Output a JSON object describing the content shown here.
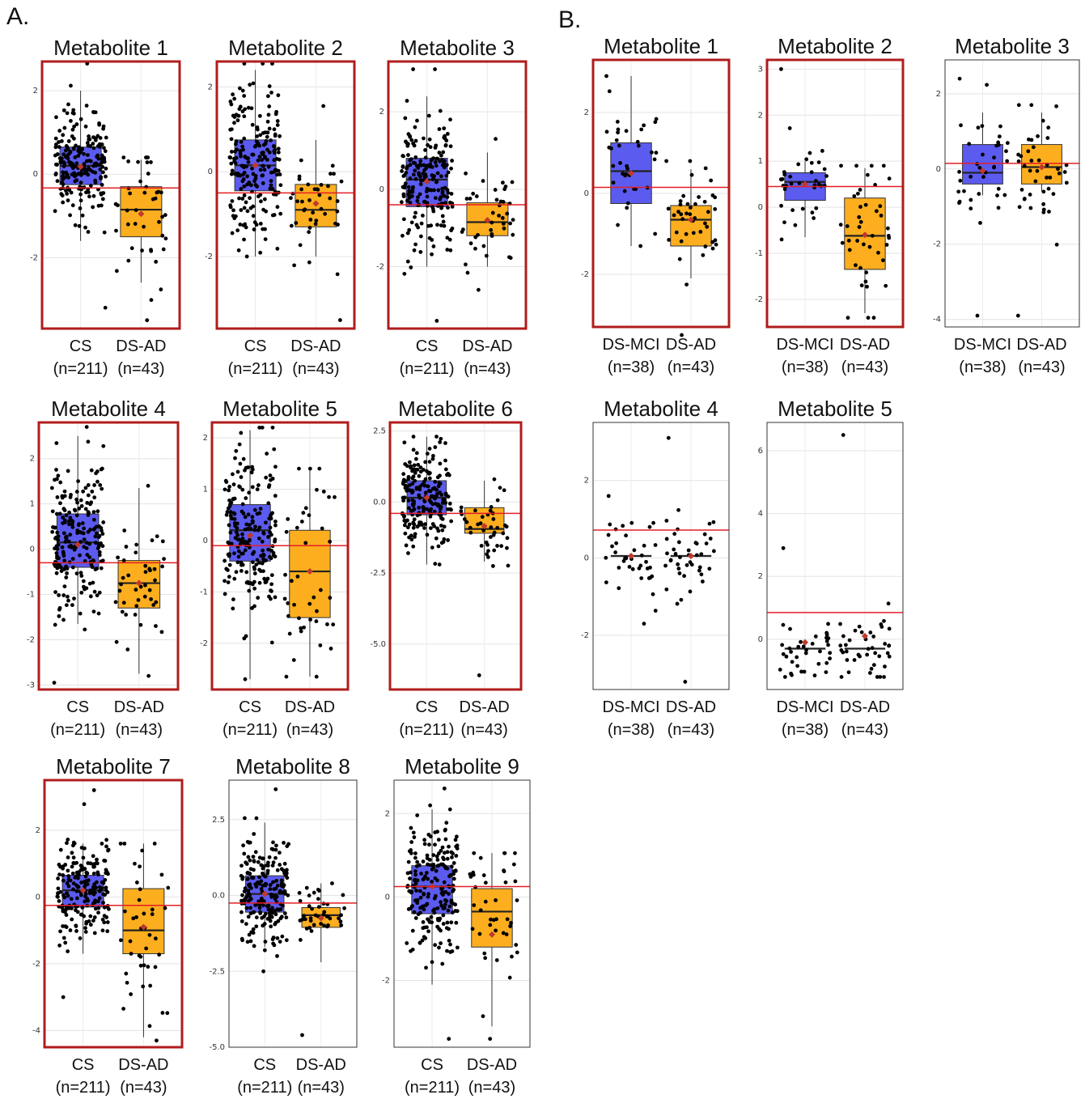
{
  "panels": [
    {
      "letter": "A.",
      "charts": [
        {
          "title": "Metabolite 1",
          "highlighted": true,
          "groups": [
            "CS",
            "DS-AD"
          ],
          "ns": [
            "(n=211)",
            "(n=43)"
          ],
          "ylim": [
            -3.7,
            2.7
          ],
          "yticks": [
            2,
            0,
            -2
          ],
          "tick_labels": [
            "2",
            "0",
            "-2"
          ],
          "threshold": -0.33,
          "boxes": [
            {
              "q1": -0.25,
              "median": 0.2,
              "q3": 0.65,
              "wlo": -1.6,
              "whi": 2.0,
              "mean": 0.18,
              "n": 211,
              "ymin": -3.2,
              "ymax": 2.65
            },
            {
              "q1": -1.5,
              "median": -0.85,
              "q3": -0.3,
              "wlo": -2.6,
              "whi": 0.35,
              "mean": -0.95,
              "n": 43,
              "ymin": -3.5,
              "ymax": 0.4
            }
          ]
        },
        {
          "title": "Metabolite 2",
          "highlighted": true,
          "groups": [
            "CS",
            "DS-AD"
          ],
          "ns": [
            "(n=211)",
            "(n=43)"
          ],
          "ylim": [
            -3.7,
            2.6
          ],
          "yticks": [
            2,
            0,
            -2
          ],
          "tick_labels": [
            "2",
            "0",
            "-2"
          ],
          "threshold": -0.5,
          "boxes": [
            {
              "q1": -0.45,
              "median": 0.15,
              "q3": 0.75,
              "wlo": -2.0,
              "whi": 2.4,
              "mean": 0.15,
              "n": 211,
              "ymin": -2.0,
              "ymax": 2.55
            },
            {
              "q1": -1.3,
              "median": -0.9,
              "q3": -0.3,
              "wlo": -2.0,
              "whi": 0.75,
              "mean": -0.75,
              "n": 43,
              "ymin": -3.5,
              "ymax": 1.55
            }
          ]
        },
        {
          "title": "Metabolite 3",
          "highlighted": true,
          "groups": [
            "CS",
            "DS-AD"
          ],
          "ns": [
            "(n=211)",
            "(n=43)"
          ],
          "ylim": [
            -3.6,
            3.3
          ],
          "yticks": [
            2,
            0,
            -2
          ],
          "tick_labels": [
            "2",
            "0",
            "-2"
          ],
          "threshold": -0.4,
          "boxes": [
            {
              "q1": -0.45,
              "median": 0.25,
              "q3": 0.8,
              "wlo": -2.0,
              "whi": 2.4,
              "mean": 0.2,
              "n": 211,
              "ymin": -3.4,
              "ymax": 3.1
            },
            {
              "q1": -1.2,
              "median": -0.85,
              "q3": -0.35,
              "wlo": -2.0,
              "whi": 0.95,
              "mean": -0.8,
              "n": 43,
              "ymin": -2.6,
              "ymax": 1.3
            }
          ]
        },
        {
          "title": "Metabolite 4",
          "highlighted": true,
          "groups": [
            "CS",
            "DS-AD"
          ],
          "ns": [
            "(n=211)",
            "(n=43)"
          ],
          "ylim": [
            -3.1,
            2.8
          ],
          "yticks": [
            2,
            1,
            0,
            -1,
            -2,
            -3
          ],
          "tick_labels": [
            "2",
            "1",
            "0",
            "-1",
            "-2",
            "-3"
          ],
          "threshold": -0.3,
          "boxes": [
            {
              "q1": -0.4,
              "median": 0.15,
              "q3": 0.78,
              "wlo": -1.65,
              "whi": 2.5,
              "mean": 0.1,
              "n": 211,
              "ymin": -2.95,
              "ymax": 2.7
            },
            {
              "q1": -1.3,
              "median": -0.75,
              "q3": -0.25,
              "wlo": -2.75,
              "whi": 1.35,
              "mean": -0.75,
              "n": 43,
              "ymin": -2.8,
              "ymax": 1.4
            }
          ]
        },
        {
          "title": "Metabolite 5",
          "highlighted": true,
          "groups": [
            "CS",
            "DS-AD"
          ],
          "ns": [
            "(n=211)",
            "(n=43)"
          ],
          "ylim": [
            -2.9,
            2.3
          ],
          "yticks": [
            2,
            1,
            0,
            -1,
            -2
          ],
          "tick_labels": [
            "2",
            "1",
            "0",
            "-1",
            "-2"
          ],
          "threshold": -0.1,
          "boxes": [
            {
              "q1": -0.4,
              "median": 0.2,
              "q3": 0.7,
              "wlo": -2.7,
              "whi": 2.15,
              "mean": 0.1,
              "n": 211,
              "ymin": -2.7,
              "ymax": 2.2
            },
            {
              "q1": -1.5,
              "median": -0.6,
              "q3": 0.2,
              "wlo": -2.65,
              "whi": 1.4,
              "mean": -0.6,
              "n": 43,
              "ymin": -2.65,
              "ymax": 1.4
            }
          ]
        },
        {
          "title": "Metabolite 6",
          "highlighted": true,
          "groups": [
            "CS",
            "DS-AD"
          ],
          "ns": [
            "(n=211)",
            "(n=43)"
          ],
          "ylim": [
            -6.6,
            2.8
          ],
          "yticks": [
            2.5,
            0,
            -2.5,
            -5
          ],
          "tick_labels": [
            "2.5",
            "0.0",
            "-2.5",
            "-5.0"
          ],
          "threshold": -0.4,
          "boxes": [
            {
              "q1": -0.45,
              "median": 0.15,
              "q3": 0.75,
              "wlo": -2.2,
              "whi": 2.3,
              "mean": 0.15,
              "n": 211,
              "ymin": -2.2,
              "ymax": 2.3
            },
            {
              "q1": -1.1,
              "median": -0.95,
              "q3": -0.2,
              "wlo": -2.1,
              "whi": 0.75,
              "mean": -0.85,
              "n": 43,
              "ymin": -6.1,
              "ymax": 0.8
            }
          ]
        },
        {
          "title": "Metabolite 7",
          "highlighted": true,
          "groups": [
            "CS",
            "DS-AD"
          ],
          "ns": [
            "(n=211)",
            "(n=43)"
          ],
          "ylim": [
            -4.5,
            3.5
          ],
          "yticks": [
            2,
            0,
            -2,
            -4
          ],
          "tick_labels": [
            "2",
            "0",
            "-2",
            "-4"
          ],
          "threshold": -0.25,
          "boxes": [
            {
              "q1": -0.3,
              "median": 0.2,
              "q3": 0.65,
              "wlo": -1.7,
              "whi": 1.6,
              "mean": 0.2,
              "n": 211,
              "ymin": -3.0,
              "ymax": 3.2
            },
            {
              "q1": -1.7,
              "median": -1.0,
              "q3": 0.25,
              "wlo": -4.2,
              "whi": 1.6,
              "mean": -0.9,
              "n": 43,
              "ymin": -4.3,
              "ymax": 1.6
            }
          ]
        },
        {
          "title": "Metabolite 8",
          "highlighted": false,
          "groups": [
            "CS",
            "DS-AD"
          ],
          "ns": [
            "(n=211)",
            "(n=43)"
          ],
          "ylim": [
            -5.0,
            3.8
          ],
          "yticks": [
            2.5,
            0,
            -2.5,
            -5
          ],
          "tick_labels": [
            "2.5",
            "0.0",
            "-2.5",
            "-5.0"
          ],
          "threshold": -0.25,
          "boxes": [
            {
              "q1": -0.55,
              "median": 0.05,
              "q3": 0.65,
              "wlo": -1.7,
              "whi": 2.4,
              "mean": 0.05,
              "n": 211,
              "ymin": -2.5,
              "ymax": 3.5
            },
            {
              "q1": -1.05,
              "median": -0.65,
              "q3": -0.4,
              "wlo": -2.2,
              "whi": 0.4,
              "mean": -0.75,
              "n": 43,
              "ymin": -4.6,
              "ymax": 0.4
            }
          ]
        },
        {
          "title": "Metabolite 9",
          "highlighted": false,
          "groups": [
            "CS",
            "DS-AD"
          ],
          "ns": [
            "(n=211)",
            "(n=43)"
          ],
          "ylim": [
            -3.6,
            2.8
          ],
          "yticks": [
            2,
            0,
            -2
          ],
          "tick_labels": [
            "2",
            "0",
            "-2"
          ],
          "threshold": 0.25,
          "boxes": [
            {
              "q1": -0.4,
              "median": 0.25,
              "q3": 0.75,
              "wlo": -2.1,
              "whi": 2.1,
              "mean": 0.25,
              "n": 211,
              "ymin": -3.4,
              "ymax": 2.6
            },
            {
              "q1": -1.2,
              "median": -0.35,
              "q3": 0.2,
              "wlo": -3.1,
              "whi": 1.05,
              "mean": -0.9,
              "n": 43,
              "ymin": -3.4,
              "ymax": 1.05
            }
          ]
        }
      ]
    },
    {
      "letter": "B.",
      "charts": [
        {
          "title": "Metabolite 1",
          "highlighted": true,
          "groups": [
            "DS-MCI",
            "DS-AD"
          ],
          "ns": [
            "(n=38)",
            "(n=43)"
          ],
          "ylim": [
            -3.3,
            3.3
          ],
          "yticks": [
            2,
            0,
            -2
          ],
          "tick_labels": [
            "2",
            "0",
            "-2"
          ],
          "threshold": 0.15,
          "boxes": [
            {
              "q1": -0.25,
              "median": 0.55,
              "q3": 1.25,
              "wlo": -1.3,
              "whi": 2.9,
              "mean": 0.5,
              "n": 38,
              "ymin": -1.3,
              "ymax": 2.9
            },
            {
              "q1": -1.3,
              "median": -0.65,
              "q3": -0.3,
              "wlo": -2.1,
              "whi": 0.6,
              "mean": -0.65,
              "n": 43,
              "ymin": -3.5,
              "ymax": 0.8
            }
          ]
        },
        {
          "title": "Metabolite 2",
          "highlighted": true,
          "groups": [
            "DS-MCI",
            "DS-AD"
          ],
          "ns": [
            "(n=38)",
            "(n=43)"
          ],
          "ylim": [
            -2.6,
            3.2
          ],
          "yticks": [
            3,
            2,
            1,
            0,
            -1,
            -2
          ],
          "tick_labels": [
            "3",
            "2",
            "1",
            "0",
            "-1",
            "-2"
          ],
          "threshold": 0.45,
          "boxes": [
            {
              "q1": 0.15,
              "median": 0.55,
              "q3": 0.75,
              "wlo": -0.65,
              "whi": 1.0,
              "mean": 0.5,
              "n": 38,
              "ymin": -0.7,
              "ymax": 3.0
            },
            {
              "q1": -1.35,
              "median": -0.62,
              "q3": 0.2,
              "wlo": -2.3,
              "whi": 0.85,
              "mean": -0.6,
              "n": 43,
              "ymin": -2.4,
              "ymax": 0.9
            }
          ]
        },
        {
          "title": "Metabolite 3",
          "highlighted": false,
          "groups": [
            "DS-MCI",
            "DS-AD"
          ],
          "ns": [
            "(n=38)",
            "(n=43)"
          ],
          "ylim": [
            -4.2,
            2.9
          ],
          "yticks": [
            2,
            0,
            -2,
            -4
          ],
          "tick_labels": [
            "2",
            "0",
            "-2",
            "-4"
          ],
          "threshold": 0.15,
          "boxes": [
            {
              "q1": -0.4,
              "median": -0.1,
              "q3": 0.65,
              "wlo": -0.7,
              "whi": 1.5,
              "mean": -0.05,
              "n": 38,
              "ymin": -3.9,
              "ymax": 2.4
            },
            {
              "q1": -0.4,
              "median": 0.05,
              "q3": 0.65,
              "wlo": -0.6,
              "whi": 1.5,
              "mean": 0.05,
              "n": 43,
              "ymin": -3.9,
              "ymax": 1.7
            }
          ]
        },
        {
          "title": "Metabolite 4",
          "highlighted": false,
          "groups": [
            "DS-MCI",
            "DS-AD"
          ],
          "ns": [
            "(n=38)",
            "(n=43)"
          ],
          "ylim": [
            -3.4,
            3.5
          ],
          "yticks": [
            2,
            0,
            -2
          ],
          "tick_labels": [
            "2",
            "0",
            "-2"
          ],
          "threshold": 0.72,
          "boxes": [
            {
              "q1": 0.05,
              "median": 0.05,
              "q3": 0.05,
              "wlo": 0.05,
              "whi": 0.05,
              "mean": 0.05,
              "n": 38,
              "ymin": -1.7,
              "ymax": 1.6
            },
            {
              "q1": 0.05,
              "median": 0.05,
              "q3": 0.05,
              "wlo": 0.05,
              "whi": 0.05,
              "mean": 0.05,
              "n": 43,
              "ymin": -3.2,
              "ymax": 3.1
            }
          ]
        },
        {
          "title": "Metabolite 5",
          "highlighted": false,
          "groups": [
            "DS-MCI",
            "DS-AD"
          ],
          "ns": [
            "(n=38)",
            "(n=43)"
          ],
          "ylim": [
            -1.6,
            6.9
          ],
          "yticks": [
            6,
            4,
            2,
            0
          ],
          "tick_labels": [
            "6",
            "4",
            "2",
            "0"
          ],
          "threshold": 0.85,
          "boxes": [
            {
              "q1": -0.3,
              "median": -0.3,
              "q3": -0.3,
              "wlo": -0.3,
              "whi": -0.3,
              "mean": -0.1,
              "n": 38,
              "ymin": -1.2,
              "ymax": 2.9
            },
            {
              "q1": -0.3,
              "median": -0.3,
              "q3": -0.3,
              "wlo": -0.3,
              "whi": -0.3,
              "mean": 0.1,
              "n": 43,
              "ymin": -1.2,
              "ymax": 6.5
            }
          ]
        }
      ]
    }
  ],
  "colors": {
    "group1": "#5b5bef",
    "group2": "#fcae1e",
    "threshold": "#e21f26",
    "frame": "#b01c1c",
    "mean": "#c0392b"
  }
}
